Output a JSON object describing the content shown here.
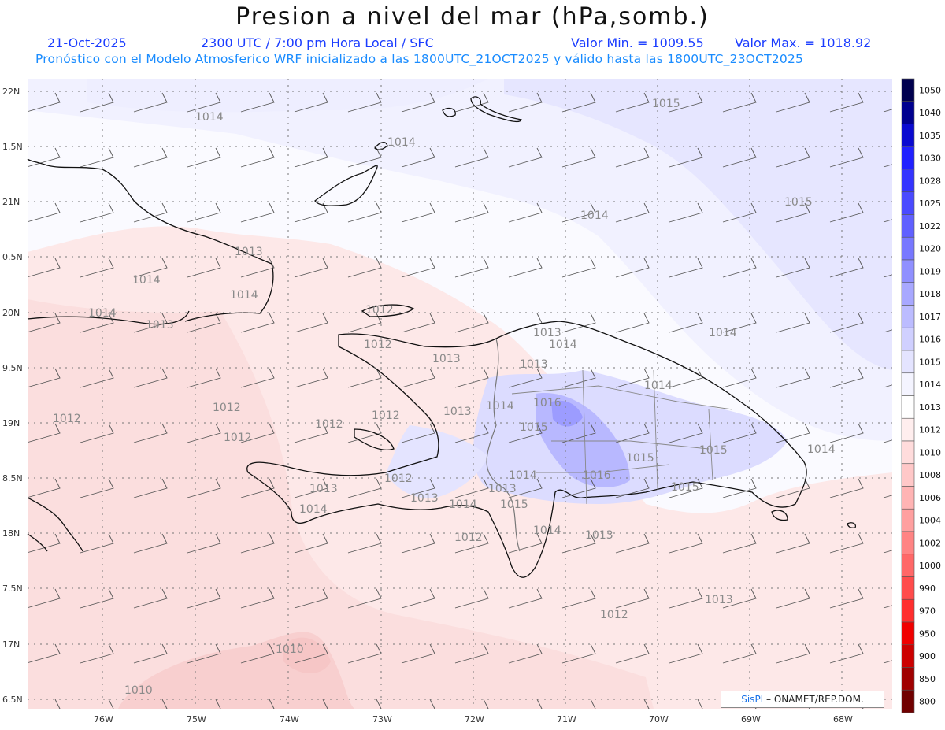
{
  "header": {
    "title": "Presion a nivel del mar (hPa,somb.)",
    "date": "21-Oct-2025",
    "time": "2300 UTC / 7:00 pm Hora Local / SFC",
    "min": "Valor Min. = 1009.55",
    "max": "Valor Max. = 1018.92",
    "model": "Pronóstico con el Modelo Atmosferico WRF inicializado a las 1800UTC_21OCT2025 y válido hasta las  1800UTC_23OCT2025"
  },
  "axes": {
    "lat_labels": [
      "22N",
      "1.5N",
      "21N",
      "0.5N",
      "20N",
      "9.5N",
      "19N",
      "8.5N",
      "18N",
      "7.5N",
      "17N",
      "6.5N"
    ],
    "lon_labels": [
      "76W",
      "75W",
      "74W",
      "73W",
      "72W",
      "71W",
      "70W",
      "69W",
      "68W"
    ]
  },
  "colorbar": {
    "labels": [
      "1050",
      "1040",
      "1035",
      "1030",
      "1028",
      "1025",
      "1022",
      "1020",
      "1019",
      "1018",
      "1017",
      "1016",
      "1015",
      "1014",
      "1013",
      "1012",
      "1010",
      "1008",
      "1006",
      "1004",
      "1002",
      "1000",
      "990",
      "970",
      "950",
      "900",
      "850",
      "800"
    ],
    "colors": [
      "#00004f",
      "#00008f",
      "#0a0ad0",
      "#2020ff",
      "#3434ff",
      "#4a4aff",
      "#6060ff",
      "#7878ff",
      "#9090ff",
      "#a8a8ff",
      "#bcbcff",
      "#d0d0ff",
      "#e4e4ff",
      "#f4f4ff",
      "#ffffff",
      "#ffeeee",
      "#ffdcdc",
      "#ffc8c8",
      "#ffb4b4",
      "#ffa0a0",
      "#ff8484",
      "#ff6868",
      "#ff4c4c",
      "#ff2e2e",
      "#f00000",
      "#cc0000",
      "#a00000",
      "#700000"
    ]
  },
  "contours": [
    {
      "label": "1015"
    },
    {
      "label": "1014"
    },
    {
      "label": "1014"
    },
    {
      "label": "1014"
    },
    {
      "label": "1015"
    },
    {
      "label": "1013"
    },
    {
      "label": "1014"
    },
    {
      "label": "1014"
    },
    {
      "label": "1014"
    },
    {
      "label": "1013"
    },
    {
      "label": "1012"
    },
    {
      "label": "1014"
    },
    {
      "label": "1012"
    },
    {
      "label": "1013"
    },
    {
      "label": "1013"
    },
    {
      "label": "1014"
    },
    {
      "label": "1013"
    },
    {
      "label": "1014"
    },
    {
      "label": "1014"
    },
    {
      "label": "1012"
    },
    {
      "label": "1012"
    },
    {
      "label": "1012"
    },
    {
      "label": "1012"
    },
    {
      "label": "1012"
    },
    {
      "label": "1013"
    },
    {
      "label": "1016"
    },
    {
      "label": "1015"
    },
    {
      "label": "1015"
    },
    {
      "label": "1014"
    },
    {
      "label": "1013"
    },
    {
      "label": "1012"
    },
    {
      "label": "1013"
    },
    {
      "label": "1013"
    },
    {
      "label": "1014"
    },
    {
      "label": "1015"
    },
    {
      "label": "1015"
    },
    {
      "label": "1014"
    },
    {
      "label": "1016"
    },
    {
      "label": "1015"
    },
    {
      "label": "1014"
    },
    {
      "label": "1014"
    },
    {
      "label": "1013"
    },
    {
      "label": "1012"
    },
    {
      "label": "1012"
    },
    {
      "label": "1013"
    },
    {
      "label": "1010"
    },
    {
      "label": "1010"
    }
  ],
  "credit": {
    "brand": "SisPI",
    "text": "– ONAMET/REP.DOM."
  }
}
